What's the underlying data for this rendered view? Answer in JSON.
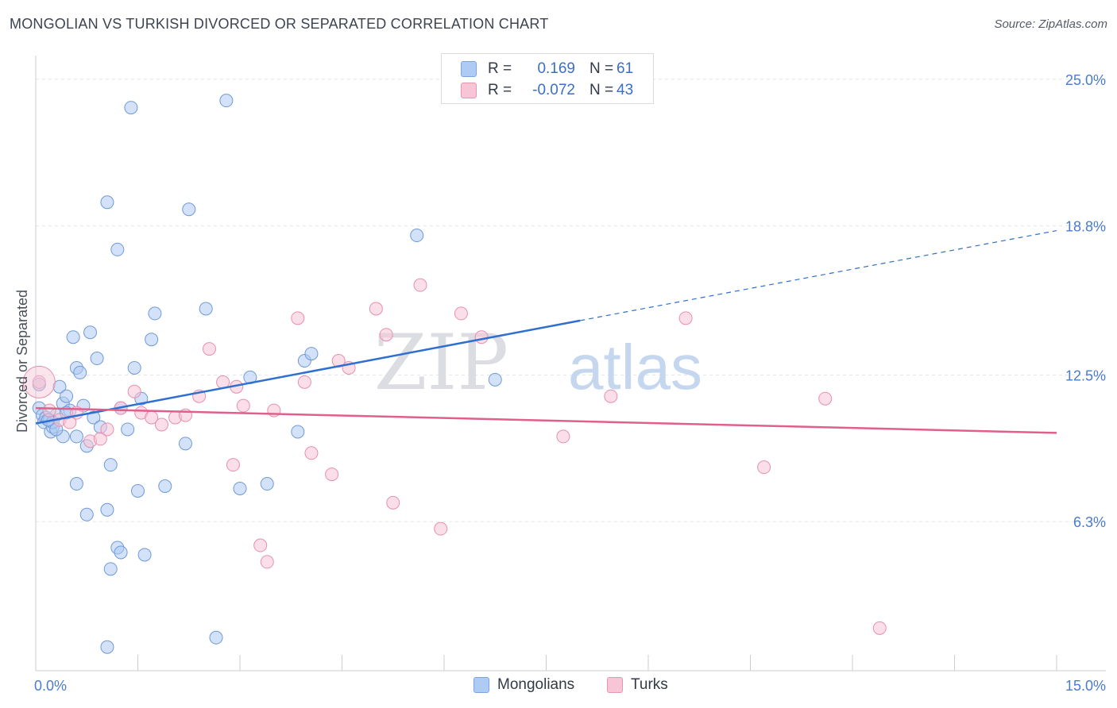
{
  "title": "MONGOLIAN VS TURKISH DIVORCED OR SEPARATED CORRELATION CHART",
  "source": "Source: ZipAtlas.com",
  "watermark": {
    "zip": "ZIP",
    "atlas": "atlas"
  },
  "legend": {
    "rows": [
      {
        "r_label": "R =",
        "r_value": "0.169",
        "n_label": "N =",
        "n_value": "61",
        "color": "#aecbf3",
        "border": "#7aa6e0"
      },
      {
        "r_label": "R =",
        "r_value": "-0.072",
        "n_label": "N =",
        "n_value": "43",
        "color": "#f7c5d5",
        "border": "#e996b3"
      }
    ]
  },
  "bottom_legend": [
    {
      "label": "Mongolians",
      "color": "#aecbf3",
      "border": "#7aa6e0"
    },
    {
      "label": "Turks",
      "color": "#f7c5d5",
      "border": "#e996b3"
    }
  ],
  "chart_data": {
    "type": "scatter",
    "title": "MONGOLIAN VS TURKISH DIVORCED OR SEPARATED CORRELATION CHART",
    "xlabel": "",
    "ylabel": "Divorced or Separated",
    "xlim": [
      0,
      15
    ],
    "ylim": [
      0,
      26
    ],
    "x_tick_labels": [
      "0.0%",
      "15.0%"
    ],
    "y_ticks": [
      6.3,
      12.5,
      18.8,
      25.0
    ],
    "y_tick_labels": [
      "6.3%",
      "12.5%",
      "18.8%",
      "25.0%"
    ],
    "series": [
      {
        "name": "Mongolians",
        "color": "#aecbf3",
        "stroke": "#6f9ad6",
        "trend": {
          "x0": 0.0,
          "y0": 10.45,
          "x1": 8.0,
          "y1": 14.8,
          "dash_x1": 15.0,
          "dash_y1": 18.6,
          "color": "#2f6fd0"
        },
        "points": [
          [
            0.05,
            11.1
          ],
          [
            0.1,
            10.8
          ],
          [
            0.12,
            10.5
          ],
          [
            0.15,
            10.7
          ],
          [
            0.2,
            10.6
          ],
          [
            0.22,
            10.1
          ],
          [
            0.25,
            10.3
          ],
          [
            0.3,
            10.8
          ],
          [
            0.35,
            12.0
          ],
          [
            0.4,
            11.3
          ],
          [
            0.45,
            11.6
          ],
          [
            0.5,
            11.0
          ],
          [
            0.55,
            14.1
          ],
          [
            0.6,
            12.8
          ],
          [
            0.65,
            12.6
          ],
          [
            0.7,
            11.2
          ],
          [
            0.75,
            9.5
          ],
          [
            0.8,
            14.3
          ],
          [
            0.85,
            10.7
          ],
          [
            0.9,
            13.2
          ],
          [
            0.95,
            10.3
          ],
          [
            1.1,
            8.7
          ],
          [
            1.25,
            11.1
          ],
          [
            1.35,
            10.2
          ],
          [
            1.45,
            12.8
          ],
          [
            1.55,
            11.5
          ],
          [
            1.7,
            14.0
          ],
          [
            1.75,
            15.1
          ],
          [
            2.2,
            9.6
          ],
          [
            2.5,
            15.3
          ],
          [
            1.05,
            19.8
          ],
          [
            1.2,
            17.8
          ],
          [
            1.4,
            23.8
          ],
          [
            2.25,
            19.5
          ],
          [
            2.8,
            24.1
          ],
          [
            1.1,
            4.3
          ],
          [
            1.2,
            5.2
          ],
          [
            1.6,
            4.9
          ],
          [
            1.05,
            1.0
          ],
          [
            2.65,
            1.4
          ],
          [
            1.5,
            7.6
          ],
          [
            1.9,
            7.8
          ],
          [
            3.0,
            7.7
          ],
          [
            3.4,
            7.9
          ],
          [
            0.6,
            7.9
          ],
          [
            0.75,
            6.6
          ],
          [
            1.05,
            6.8
          ],
          [
            1.25,
            5.0
          ],
          [
            3.15,
            12.4
          ],
          [
            3.95,
            13.1
          ],
          [
            4.05,
            13.4
          ],
          [
            3.85,
            10.1
          ],
          [
            5.6,
            18.4
          ],
          [
            6.75,
            12.3
          ],
          [
            0.6,
            9.9
          ],
          [
            0.4,
            9.9
          ],
          [
            0.25,
            10.5
          ],
          [
            0.45,
            10.9
          ],
          [
            0.05,
            12.1
          ],
          [
            0.18,
            10.6
          ],
          [
            0.3,
            10.2
          ]
        ]
      },
      {
        "name": "Turks",
        "color": "#f7c5d5",
        "stroke": "#e78fae",
        "trend": {
          "x0": 0.0,
          "y0": 11.1,
          "x1": 15.0,
          "y1": 10.05,
          "color": "#e0608b"
        },
        "points": [
          [
            0.05,
            12.2
          ],
          [
            0.2,
            11.0
          ],
          [
            0.35,
            10.6
          ],
          [
            0.5,
            10.5
          ],
          [
            0.6,
            10.9
          ],
          [
            0.8,
            9.7
          ],
          [
            0.95,
            9.8
          ],
          [
            1.05,
            10.2
          ],
          [
            1.25,
            11.1
          ],
          [
            1.45,
            11.8
          ],
          [
            1.55,
            10.9
          ],
          [
            1.7,
            10.7
          ],
          [
            1.85,
            10.4
          ],
          [
            2.05,
            10.7
          ],
          [
            2.2,
            10.8
          ],
          [
            2.4,
            11.6
          ],
          [
            2.55,
            13.6
          ],
          [
            2.75,
            12.2
          ],
          [
            2.9,
            8.7
          ],
          [
            2.95,
            12.0
          ],
          [
            3.05,
            11.2
          ],
          [
            3.3,
            5.3
          ],
          [
            3.4,
            4.6
          ],
          [
            3.5,
            11.0
          ],
          [
            3.85,
            14.9
          ],
          [
            3.95,
            12.2
          ],
          [
            4.05,
            9.2
          ],
          [
            4.35,
            8.3
          ],
          [
            4.45,
            13.1
          ],
          [
            4.6,
            12.8
          ],
          [
            5.0,
            15.3
          ],
          [
            5.15,
            14.2
          ],
          [
            5.25,
            7.1
          ],
          [
            5.65,
            16.3
          ],
          [
            5.95,
            6.0
          ],
          [
            6.25,
            15.1
          ],
          [
            6.55,
            14.1
          ],
          [
            7.75,
            9.9
          ],
          [
            8.45,
            11.6
          ],
          [
            9.55,
            14.9
          ],
          [
            10.7,
            8.6
          ],
          [
            11.6,
            11.5
          ],
          [
            12.4,
            1.8
          ]
        ]
      }
    ]
  }
}
